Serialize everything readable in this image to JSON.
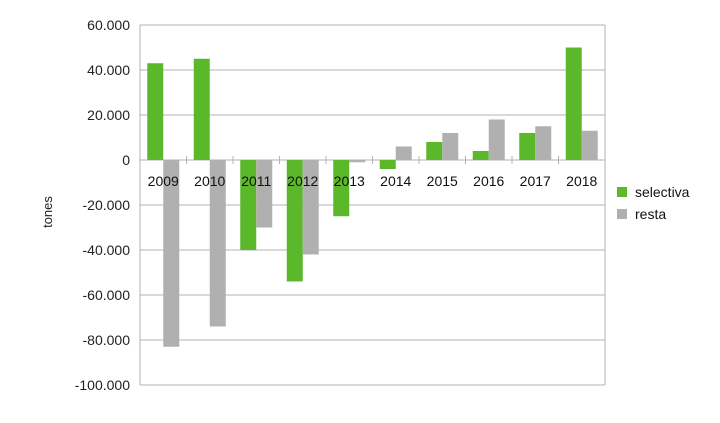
{
  "chart_data": {
    "type": "bar",
    "title": "",
    "xlabel": "",
    "ylabel": "tones",
    "categories": [
      "2009",
      "2010",
      "2011",
      "2012",
      "2013",
      "2014",
      "2015",
      "2016",
      "2017",
      "2018"
    ],
    "series": [
      {
        "name": "selectiva",
        "color": "#5cb82b",
        "values": [
          43000,
          45000,
          -40000,
          -54000,
          -25000,
          -4000,
          8000,
          4000,
          12000,
          50000
        ]
      },
      {
        "name": "resta",
        "color": "#b0b0b0",
        "values": [
          -83000,
          -74000,
          -30000,
          -42000,
          -1000,
          6000,
          12000,
          18000,
          15000,
          13000
        ]
      }
    ],
    "yticks": [
      "60.000",
      "40.000",
      "20.000",
      "0",
      "-20.000",
      "-40.000",
      "-60.000",
      "-80.000",
      "-100.000"
    ],
    "ylim": [
      -100000,
      60000
    ],
    "ystep": 20000,
    "grid": true,
    "legend": "right"
  }
}
